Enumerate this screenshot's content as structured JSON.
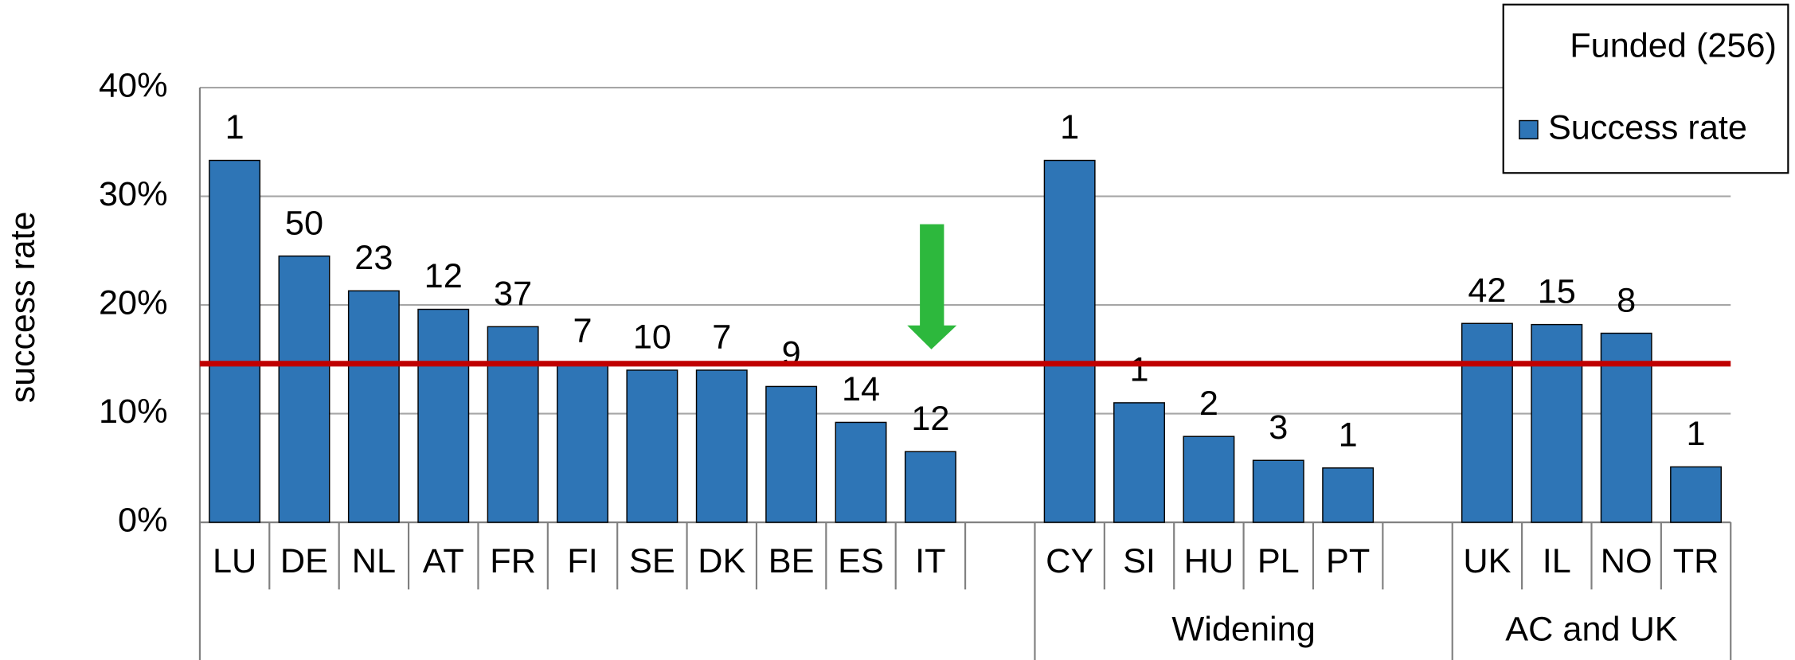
{
  "chart_data": {
    "type": "bar",
    "ylabel": "success rate",
    "categories": [
      "LU",
      "DE",
      "NL",
      "AT",
      "FR",
      "FI",
      "SE",
      "DK",
      "BE",
      "ES",
      "IT",
      null,
      "CY",
      "SI",
      "HU",
      "PL",
      "PT",
      null,
      "UK",
      "IL",
      "NO",
      "TR"
    ],
    "group_labels": [
      null,
      "Widening",
      "AC and UK"
    ],
    "series": [
      {
        "name": "Success rate",
        "color": "#2e75b6",
        "values": [
          33.3,
          24.5,
          21.3,
          19.6,
          18.0,
          14.6,
          14.0,
          14.0,
          12.5,
          9.2,
          6.5,
          null,
          33.3,
          11.0,
          7.9,
          5.7,
          5.0,
          null,
          18.3,
          18.2,
          17.4,
          5.1
        ]
      }
    ],
    "funded": {
      "name": "Funded (256)",
      "values": [
        1,
        50,
        23,
        12,
        37,
        7,
        10,
        7,
        9,
        14,
        12,
        null,
        1,
        1,
        2,
        3,
        1,
        null,
        42,
        15,
        8,
        1
      ]
    },
    "reference_line": {
      "value": 14.6,
      "color": "#c00000"
    },
    "ylim": [
      0,
      40
    ],
    "yticks": [
      {
        "value": 0,
        "label": "0%"
      },
      {
        "value": 10,
        "label": "10%"
      },
      {
        "value": 20,
        "label": "20%"
      },
      {
        "value": 30,
        "label": "30%"
      },
      {
        "value": 40,
        "label": "40%"
      }
    ],
    "grid": true
  }
}
